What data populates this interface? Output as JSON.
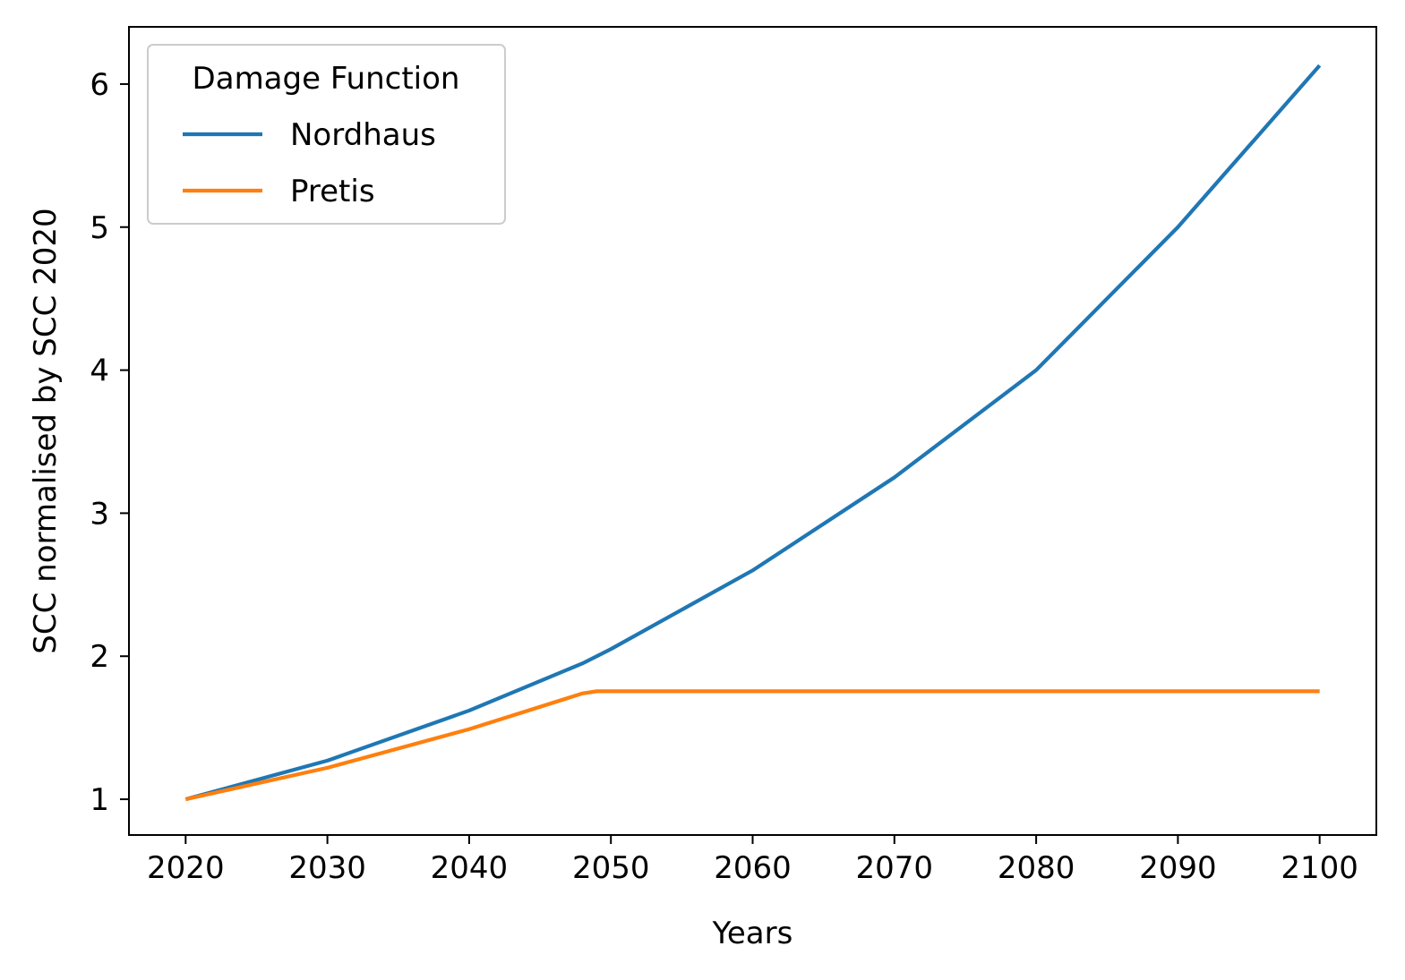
{
  "chart_data": {
    "type": "line",
    "xlabel": "Years",
    "ylabel": "SCC normalised by SCC 2020",
    "xlim": [
      2016,
      2104
    ],
    "ylim": [
      0.75,
      6.4
    ],
    "x_ticks": [
      2020,
      2030,
      2040,
      2050,
      2060,
      2070,
      2080,
      2090,
      2100
    ],
    "y_ticks": [
      1,
      2,
      3,
      4,
      5,
      6
    ],
    "x_tick_labels": [
      "2020",
      "2030",
      "2040",
      "2050",
      "2060",
      "2070",
      "2080",
      "2090",
      "2100"
    ],
    "y_tick_labels": [
      "1",
      "2",
      "3",
      "4",
      "5",
      "6"
    ],
    "grid": false,
    "legend": {
      "title": "Damage Function",
      "placement": "upper-left"
    },
    "x": [
      2020,
      2030,
      2040,
      2048,
      2049,
      2050,
      2060,
      2070,
      2080,
      2090,
      2100
    ],
    "series": [
      {
        "name": "Nordhaus",
        "color": "#1f77b4",
        "values": [
          1.0,
          1.27,
          1.62,
          1.95,
          2.0,
          2.05,
          2.6,
          3.25,
          4.0,
          5.0,
          6.13
        ]
      },
      {
        "name": "Pretis",
        "color": "#ff7f0e",
        "values": [
          1.0,
          1.22,
          1.49,
          1.74,
          1.755,
          1.755,
          1.755,
          1.755,
          1.755,
          1.755,
          1.755
        ]
      }
    ]
  }
}
